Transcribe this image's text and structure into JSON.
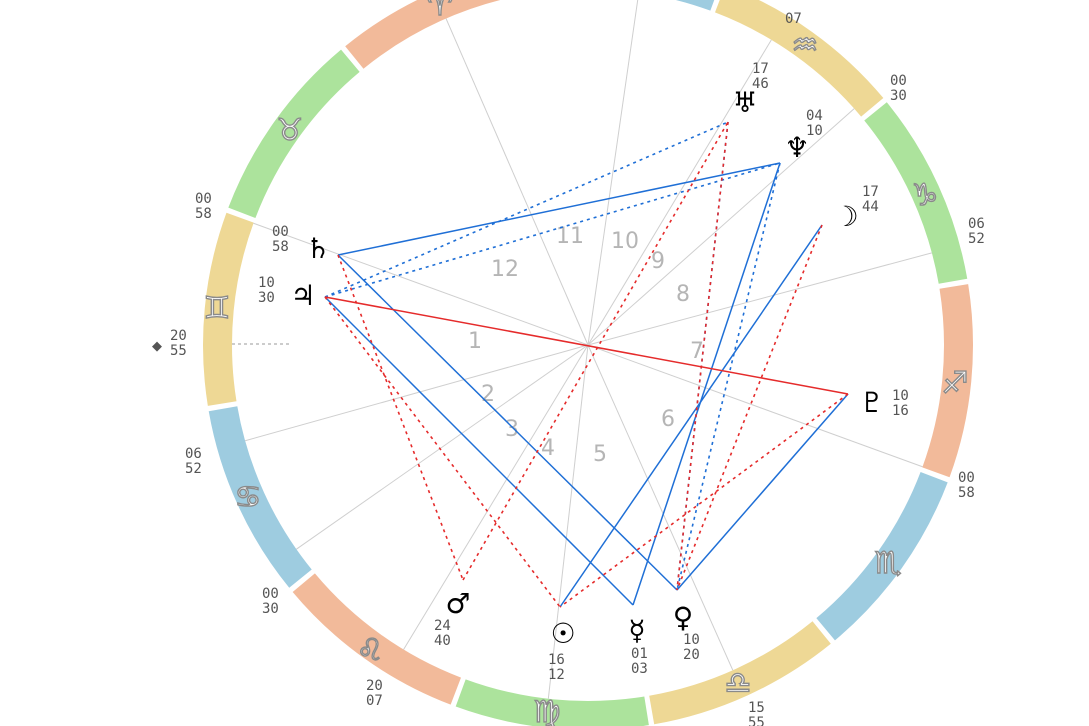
{
  "colors": {
    "fire": "#F2BA9A",
    "earth": "#ACE39C",
    "air": "#EED895",
    "water": "#9ECCE0",
    "cusp_line": "#cfcfcf",
    "aspect_harmonious": "#1f6fd6",
    "aspect_tense": "#e52b2b"
  },
  "signs": [
    {
      "id": "capricorn",
      "glyph": "♑",
      "element": "earth"
    },
    {
      "id": "aquarius",
      "glyph": "♒",
      "element": "air"
    },
    {
      "id": "pisces",
      "glyph": "♓",
      "element": "water"
    },
    {
      "id": "aries",
      "glyph": "♈",
      "element": "fire"
    },
    {
      "id": "taurus",
      "glyph": "♉",
      "element": "earth"
    },
    {
      "id": "gemini",
      "glyph": "♊",
      "element": "air"
    },
    {
      "id": "cancer",
      "glyph": "♋",
      "element": "water"
    },
    {
      "id": "leo",
      "glyph": "♌",
      "element": "fire"
    },
    {
      "id": "virgo",
      "glyph": "♍",
      "element": "earth"
    },
    {
      "id": "libra",
      "glyph": "♎",
      "element": "air"
    },
    {
      "id": "scorpio",
      "glyph": "♏",
      "element": "water"
    },
    {
      "id": "sagittarius",
      "glyph": "♐",
      "element": "fire"
    }
  ],
  "ascendant": {
    "deg": "20",
    "min": "55"
  },
  "houses": [
    "1",
    "2",
    "3",
    "4",
    "5",
    "6",
    "7",
    "8",
    "9",
    "10",
    "11",
    "12"
  ],
  "cusp_labels": [
    {
      "id": "c12",
      "deg": "00",
      "min": "58"
    },
    {
      "id": "c2",
      "deg": "06",
      "min": "52"
    },
    {
      "id": "c3",
      "deg": "00",
      "min": "30"
    },
    {
      "id": "c4",
      "deg": "20",
      "min": "07"
    },
    {
      "id": "c6",
      "deg": "15",
      "min": "55"
    },
    {
      "id": "c7",
      "deg": "00",
      "min": "58"
    },
    {
      "id": "c8",
      "deg": "06",
      "min": "52"
    },
    {
      "id": "c9",
      "deg": "00",
      "min": "30"
    },
    {
      "id": "c10",
      "deg": "",
      "min": "07"
    }
  ],
  "planets": [
    {
      "id": "saturn",
      "glyph": "♄",
      "deg": "00",
      "min": "58"
    },
    {
      "id": "jupiter",
      "glyph": "♃",
      "deg": "10",
      "min": "30"
    },
    {
      "id": "uranus",
      "glyph": "♅",
      "deg": "17",
      "min": "46"
    },
    {
      "id": "neptune",
      "glyph": "♆",
      "deg": "04",
      "min": "10"
    },
    {
      "id": "moon",
      "glyph": "☽",
      "deg": "17",
      "min": "44"
    },
    {
      "id": "pluto",
      "glyph": "♇",
      "deg": "10",
      "min": "16"
    },
    {
      "id": "mars",
      "glyph": "♂",
      "deg": "24",
      "min": "40"
    },
    {
      "id": "sun",
      "glyph": "☉",
      "deg": "16",
      "min": "12"
    },
    {
      "id": "mercury",
      "glyph": "☿",
      "deg": "01",
      "min": "03"
    },
    {
      "id": "venus",
      "glyph": "♀",
      "deg": "10",
      "min": "20"
    }
  ],
  "aspects": [
    {
      "a": "saturn",
      "b": "neptune",
      "color": "aspect_harmonious",
      "style": "solid"
    },
    {
      "a": "saturn",
      "b": "venus",
      "color": "aspect_harmonious",
      "style": "solid"
    },
    {
      "a": "jupiter",
      "b": "mercury",
      "color": "aspect_harmonious",
      "style": "solid"
    },
    {
      "a": "mercury",
      "b": "neptune",
      "color": "aspect_harmonious",
      "style": "solid"
    },
    {
      "a": "sun",
      "b": "moon",
      "color": "aspect_harmonious",
      "style": "solid"
    },
    {
      "a": "venus",
      "b": "pluto",
      "color": "aspect_harmonious",
      "style": "solid"
    },
    {
      "a": "jupiter",
      "b": "uranus",
      "color": "aspect_harmonious",
      "style": "dotted"
    },
    {
      "a": "jupiter",
      "b": "neptune",
      "color": "aspect_harmonious",
      "style": "dotted"
    },
    {
      "a": "uranus",
      "b": "venus",
      "color": "aspect_harmonious",
      "style": "dotted"
    },
    {
      "a": "neptune",
      "b": "venus",
      "color": "aspect_harmonious",
      "style": "dotted"
    },
    {
      "a": "jupiter",
      "b": "pluto",
      "color": "aspect_tense",
      "style": "solid"
    },
    {
      "a": "saturn",
      "b": "mars",
      "color": "aspect_tense",
      "style": "dotted"
    },
    {
      "a": "jupiter",
      "b": "sun",
      "color": "aspect_tense",
      "style": "dotted"
    },
    {
      "a": "mars",
      "b": "uranus",
      "color": "aspect_tense",
      "style": "dotted"
    },
    {
      "a": "moon",
      "b": "venus",
      "color": "aspect_tense",
      "style": "dotted"
    },
    {
      "a": "pluto",
      "b": "sun",
      "color": "aspect_tense",
      "style": "dotted"
    },
    {
      "a": "uranus",
      "b": "venus",
      "color": "aspect_tense",
      "style": "dotted"
    }
  ]
}
